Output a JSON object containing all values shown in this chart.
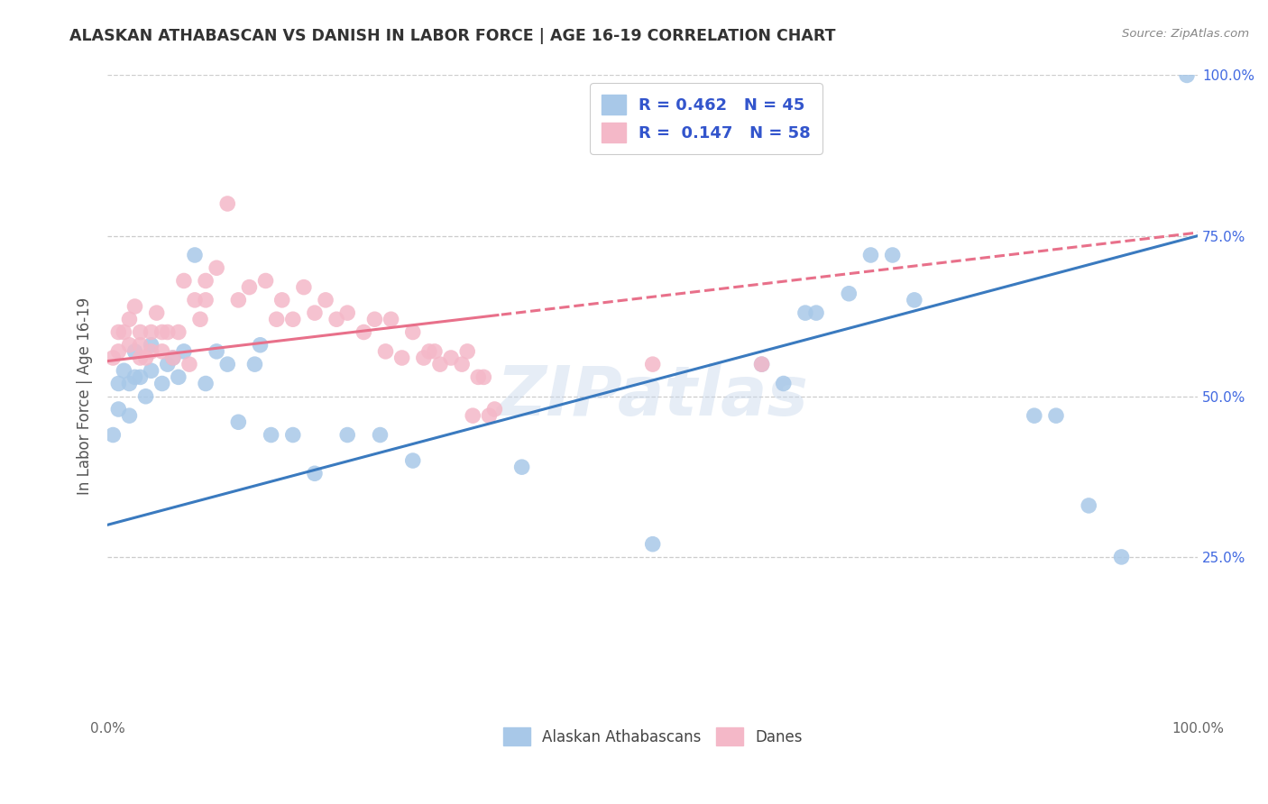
{
  "title": "ALASKAN ATHABASCAN VS DANISH IN LABOR FORCE | AGE 16-19 CORRELATION CHART",
  "source": "Source: ZipAtlas.com",
  "ylabel": "In Labor Force | Age 16-19",
  "xlim": [
    0,
    1.0
  ],
  "ylim": [
    0,
    1.0
  ],
  "watermark": "ZIPatlas",
  "legend_line1": "R = 0.462   N = 45",
  "legend_line2": "R =  0.147   N = 58",
  "blue_scatter_color": "#a8c8e8",
  "pink_scatter_color": "#f4b8c8",
  "blue_line_color": "#3a7abf",
  "pink_line_color": "#e8708a",
  "title_color": "#333333",
  "legend_text_color": "#3355cc",
  "source_color": "#888888",
  "background_color": "#ffffff",
  "grid_color": "#cccccc",
  "right_tick_color": "#4169e1",
  "figsize": [
    14.06,
    8.92
  ],
  "dpi": 100,
  "blue_intercept": 0.3,
  "blue_slope": 0.45,
  "pink_intercept": 0.555,
  "pink_slope": 0.2,
  "athabascan_x": [
    0.005,
    0.01,
    0.01,
    0.015,
    0.02,
    0.02,
    0.025,
    0.025,
    0.03,
    0.035,
    0.04,
    0.04,
    0.05,
    0.055,
    0.06,
    0.065,
    0.07,
    0.08,
    0.09,
    0.1,
    0.11,
    0.12,
    0.135,
    0.14,
    0.15,
    0.17,
    0.19,
    0.22,
    0.25,
    0.28,
    0.38,
    0.5,
    0.6,
    0.62,
    0.64,
    0.65,
    0.68,
    0.7,
    0.72,
    0.74,
    0.85,
    0.87,
    0.9,
    0.93,
    0.99
  ],
  "athabascan_y": [
    0.44,
    0.48,
    0.52,
    0.54,
    0.47,
    0.52,
    0.53,
    0.57,
    0.53,
    0.5,
    0.54,
    0.58,
    0.52,
    0.55,
    0.56,
    0.53,
    0.57,
    0.72,
    0.52,
    0.57,
    0.55,
    0.46,
    0.55,
    0.58,
    0.44,
    0.44,
    0.38,
    0.44,
    0.44,
    0.4,
    0.39,
    0.27,
    0.55,
    0.52,
    0.63,
    0.63,
    0.66,
    0.72,
    0.72,
    0.65,
    0.47,
    0.47,
    0.33,
    0.25,
    1.0
  ],
  "danish_x": [
    0.005,
    0.01,
    0.01,
    0.015,
    0.02,
    0.02,
    0.025,
    0.03,
    0.03,
    0.03,
    0.035,
    0.04,
    0.04,
    0.045,
    0.05,
    0.05,
    0.055,
    0.06,
    0.065,
    0.07,
    0.075,
    0.08,
    0.085,
    0.09,
    0.09,
    0.1,
    0.11,
    0.12,
    0.13,
    0.145,
    0.155,
    0.16,
    0.17,
    0.18,
    0.19,
    0.2,
    0.21,
    0.22,
    0.235,
    0.245,
    0.255,
    0.26,
    0.27,
    0.28,
    0.29,
    0.295,
    0.3,
    0.305,
    0.315,
    0.325,
    0.33,
    0.335,
    0.34,
    0.345,
    0.35,
    0.355,
    0.5,
    0.6
  ],
  "danish_y": [
    0.56,
    0.57,
    0.6,
    0.6,
    0.58,
    0.62,
    0.64,
    0.56,
    0.58,
    0.6,
    0.56,
    0.57,
    0.6,
    0.63,
    0.57,
    0.6,
    0.6,
    0.56,
    0.6,
    0.68,
    0.55,
    0.65,
    0.62,
    0.65,
    0.68,
    0.7,
    0.8,
    0.65,
    0.67,
    0.68,
    0.62,
    0.65,
    0.62,
    0.67,
    0.63,
    0.65,
    0.62,
    0.63,
    0.6,
    0.62,
    0.57,
    0.62,
    0.56,
    0.6,
    0.56,
    0.57,
    0.57,
    0.55,
    0.56,
    0.55,
    0.57,
    0.47,
    0.53,
    0.53,
    0.47,
    0.48,
    0.55,
    0.55
  ]
}
